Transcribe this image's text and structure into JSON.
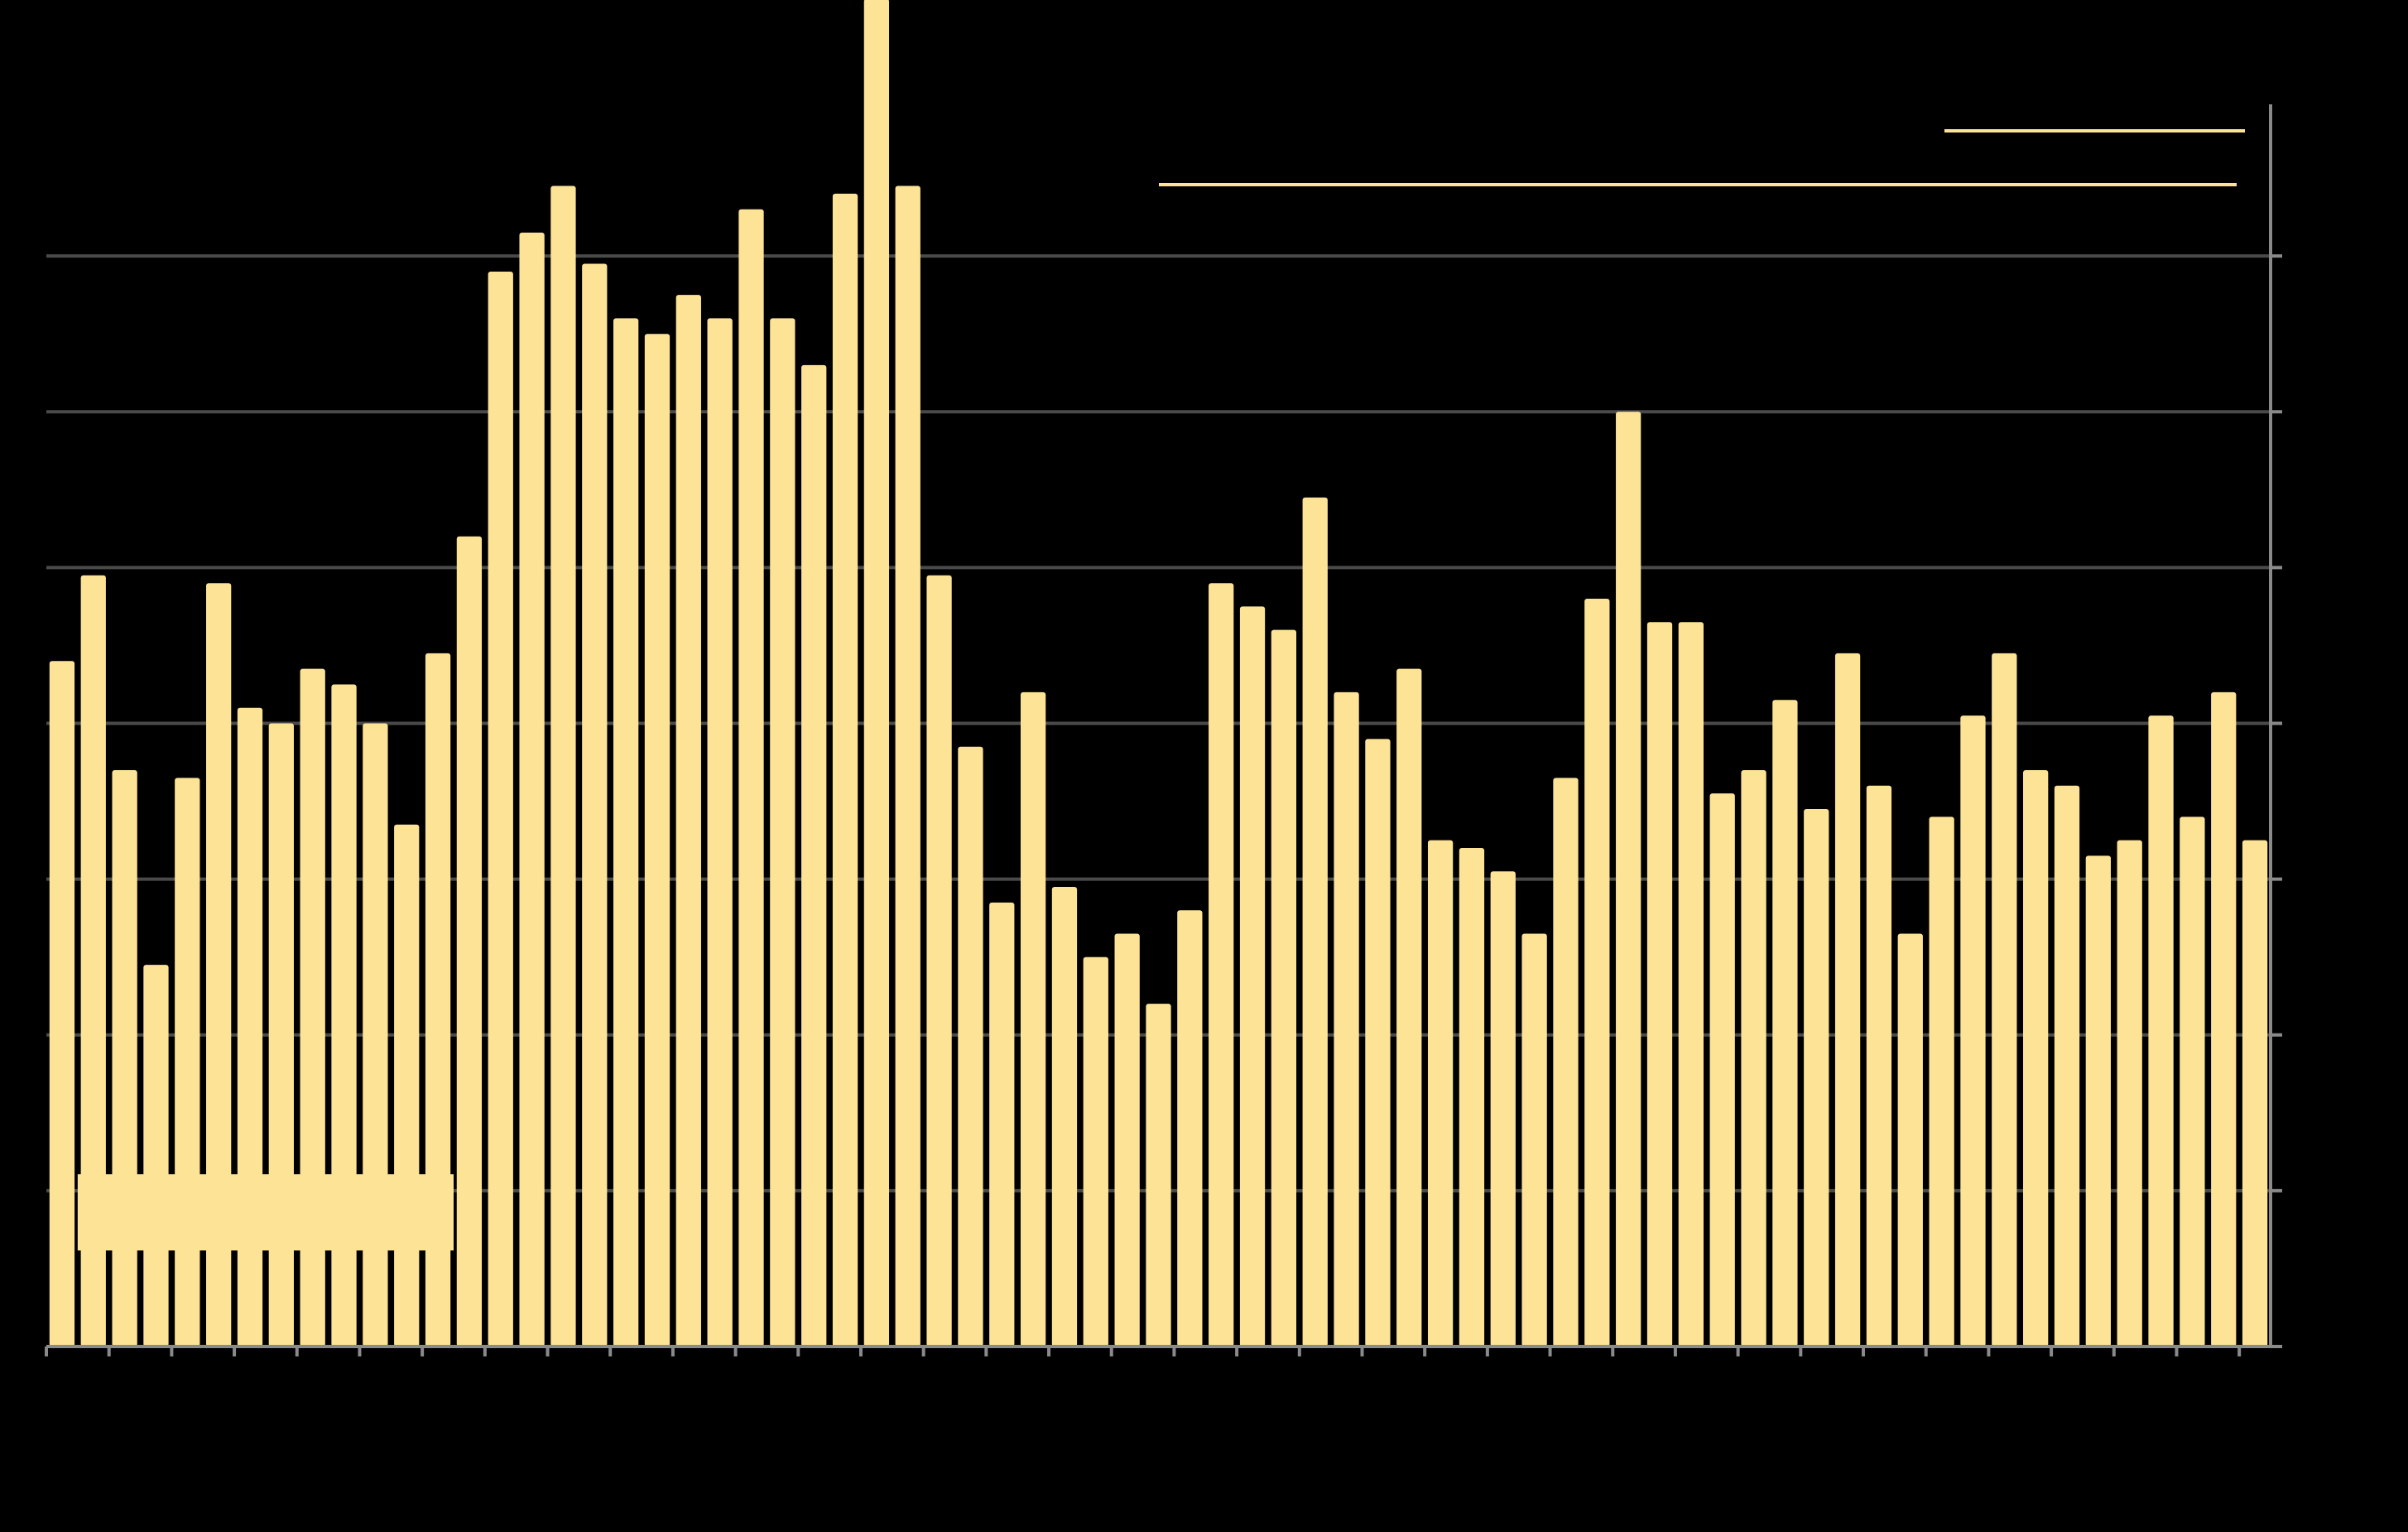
{
  "colors": {
    "background": "#000000",
    "bar": "#FDE396",
    "grid": "#4A4A4A",
    "axis": "#8A8A8A",
    "legend_line": "#FDE396"
  },
  "chart_data": {
    "type": "bar",
    "title": "",
    "xlabel": "",
    "ylabel": "",
    "ylim": [
      0,
      8
    ],
    "y_axis_side": "right",
    "grid": true,
    "legend": {
      "placement": "top-right",
      "entries": [
        "",
        ""
      ]
    },
    "annotations": [
      {
        "text": "",
        "over_bars": [
          1,
          12
        ]
      },
      {
        "text": "",
        "over_bars": [
          51,
          71
        ]
      }
    ],
    "values": [
      4.4,
      4.95,
      3.7,
      2.45,
      3.65,
      4.9,
      4.1,
      4.0,
      4.35,
      4.25,
      4.0,
      3.35,
      4.45,
      5.2,
      6.9,
      7.15,
      7.45,
      6.95,
      6.6,
      6.5,
      6.75,
      6.6,
      7.3,
      6.6,
      6.3,
      7.4,
      8.65,
      7.45,
      4.95,
      3.85,
      2.85,
      4.2,
      2.95,
      2.5,
      2.65,
      2.2,
      2.8,
      4.9,
      4.75,
      4.6,
      5.45,
      4.2,
      3.9,
      4.35,
      3.25,
      3.2,
      3.05,
      2.65,
      3.65,
      4.8,
      6.0,
      4.65,
      4.65,
      3.55,
      3.7,
      4.15,
      3.45,
      4.45,
      3.6,
      2.65,
      3.4,
      4.05,
      4.45,
      3.7,
      3.6,
      3.15,
      3.25,
      4.05,
      3.4,
      4.2,
      3.25
    ]
  }
}
